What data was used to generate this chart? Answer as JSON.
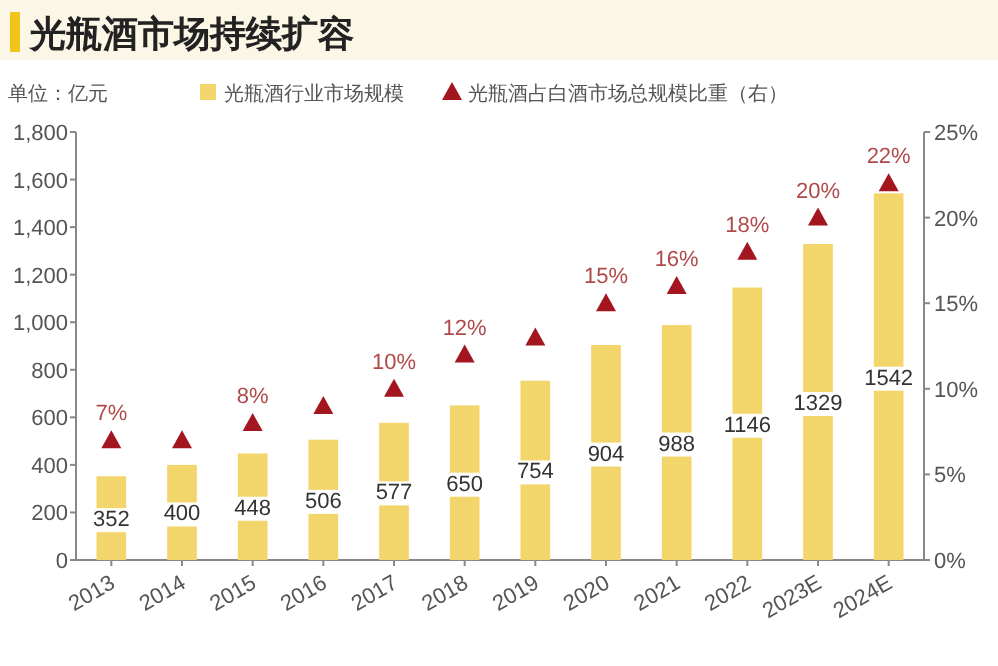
{
  "chart_data": {
    "type": "bar",
    "title": "光瓶酒市场持续扩容",
    "ylabel": "单位：亿元",
    "categories": [
      "2013",
      "2014",
      "2015",
      "2016",
      "2017",
      "2018",
      "2019",
      "2020",
      "2021",
      "2022",
      "2023E",
      "2024E"
    ],
    "series": [
      {
        "name": "光瓶酒行业市场规模",
        "color": "#f3d66b",
        "values": [
          352,
          400,
          448,
          506,
          577,
          650,
          754,
          904,
          988,
          1146,
          1329,
          1542
        ],
        "data_labels": true
      },
      {
        "name": "光瓶酒占白酒市场总规模比重（右）",
        "type": "scatter",
        "axis": "y2",
        "marker": "triangle",
        "color": "#a3151f",
        "values": [
          7,
          7,
          8,
          9,
          10,
          12,
          13,
          15,
          16,
          18,
          20,
          22
        ],
        "value_labels": [
          "7%",
          null,
          "8%",
          null,
          "10%",
          "12%",
          null,
          "15%",
          "16%",
          "18%",
          "20%",
          "22%"
        ]
      }
    ],
    "ylim": [
      0,
      1800
    ],
    "yticks": [
      0,
      200,
      400,
      600,
      800,
      {
        "value": 1000,
        "label": "1,000"
      },
      {
        "value": 1200,
        "label": "1,200"
      },
      {
        "value": 1400,
        "label": "1,400"
      },
      {
        "value": 1600,
        "label": "1,600"
      },
      {
        "value": 1800,
        "label": "1,800"
      }
    ],
    "y2lim": [
      0,
      25
    ],
    "y2ticks": [
      {
        "value": 0,
        "label": "0%"
      },
      {
        "value": 5,
        "label": "5%"
      },
      {
        "value": 10,
        "label": "10%"
      },
      {
        "value": 15,
        "label": "15%"
      },
      {
        "value": 20,
        "label": "20%"
      },
      {
        "value": 25,
        "label": "25%"
      }
    ],
    "legend": "top",
    "grid": false
  }
}
